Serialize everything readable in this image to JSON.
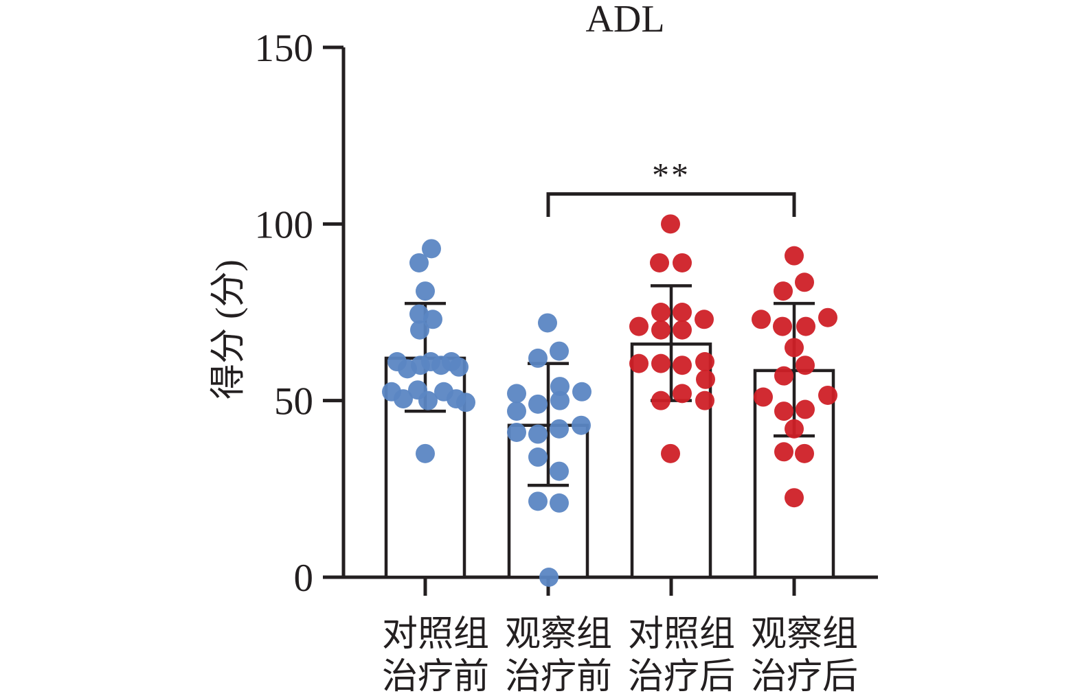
{
  "title": "ADL",
  "colors": {
    "pre_treatment_dots": "#5b86c3",
    "post_treatment_dots": "#cf2027",
    "axis": "#231f20",
    "bar_fill": "#ffffff"
  },
  "chart_data": {
    "type": "bar",
    "subtype": "bar-with-scatter-overlay-and-sd-error-bars",
    "title": "ADL",
    "ylabel": "得分 (分)",
    "xlabel": "",
    "ylim": [
      0,
      150
    ],
    "yticks": [
      0,
      50,
      100,
      150
    ],
    "grid": false,
    "legend": "none",
    "categories": [
      "对照组 治疗前",
      "观察组 治疗前",
      "对照组 治疗后",
      "观察组 治疗后"
    ],
    "groups": [
      {
        "label_lines": [
          "对照组",
          "治疗前"
        ],
        "dot_color": "#5b86c3",
        "bar_mean": 62,
        "error_low": 47,
        "error_high": 77.5,
        "points": [
          [
            9,
            93
          ],
          [
            -9,
            89
          ],
          [
            0,
            81
          ],
          [
            -9,
            74.5
          ],
          [
            11,
            73
          ],
          [
            -8,
            70
          ],
          [
            -41,
            61
          ],
          [
            -26,
            59
          ],
          [
            -7,
            60
          ],
          [
            8,
            61
          ],
          [
            23,
            60
          ],
          [
            38,
            61
          ],
          [
            49,
            59.5
          ],
          [
            -49,
            52.5
          ],
          [
            -32,
            50.5
          ],
          [
            -11,
            53
          ],
          [
            4,
            50
          ],
          [
            27,
            52.5
          ],
          [
            45,
            50.5
          ],
          [
            59,
            49.5
          ],
          [
            0,
            35
          ]
        ]
      },
      {
        "label_lines": [
          "观察组",
          "治疗前"
        ],
        "dot_color": "#5b86c3",
        "bar_mean": 43,
        "error_low": 26,
        "error_high": 60.5,
        "points": [
          [
            -1,
            72
          ],
          [
            16,
            64
          ],
          [
            -15,
            62
          ],
          [
            17,
            54
          ],
          [
            49,
            52.5
          ],
          [
            -46,
            52
          ],
          [
            17,
            50
          ],
          [
            -15,
            49
          ],
          [
            -46,
            47
          ],
          [
            48,
            43
          ],
          [
            16,
            42
          ],
          [
            -46,
            41
          ],
          [
            -15,
            40.5
          ],
          [
            -15,
            34
          ],
          [
            16,
            30
          ],
          [
            -15,
            21.5
          ],
          [
            16,
            21
          ],
          [
            1,
            0
          ]
        ]
      },
      {
        "label_lines": [
          "对照组",
          "治疗后"
        ],
        "dot_color": "#cf2027",
        "bar_mean": 66,
        "error_low": 50,
        "error_high": 82.5,
        "points": [
          [
            -1,
            100
          ],
          [
            -17,
            89
          ],
          [
            16,
            89
          ],
          [
            -15,
            75
          ],
          [
            16,
            75
          ],
          [
            48,
            73
          ],
          [
            -47,
            71
          ],
          [
            -15,
            70
          ],
          [
            16,
            70
          ],
          [
            49,
            61
          ],
          [
            -47,
            60.5
          ],
          [
            -15,
            60.5
          ],
          [
            16,
            60
          ],
          [
            50,
            56
          ],
          [
            16,
            52
          ],
          [
            -15,
            50
          ],
          [
            49,
            50
          ],
          [
            -1,
            35
          ]
        ]
      },
      {
        "label_lines": [
          "观察组",
          "治疗后"
        ],
        "dot_color": "#cf2027",
        "bar_mean": 58.5,
        "error_low": 40,
        "error_high": 77.5,
        "points": [
          [
            0,
            91
          ],
          [
            15,
            83.5
          ],
          [
            -16,
            81
          ],
          [
            -48,
            73
          ],
          [
            49,
            73.5
          ],
          [
            -17,
            71
          ],
          [
            17,
            71
          ],
          [
            0,
            65
          ],
          [
            16,
            60
          ],
          [
            -15,
            57
          ],
          [
            -45,
            51
          ],
          [
            49,
            51.5
          ],
          [
            16,
            47.5
          ],
          [
            -15,
            47
          ],
          [
            0,
            42
          ],
          [
            -15,
            35.5
          ],
          [
            15,
            35
          ],
          [
            0,
            22.5
          ]
        ]
      }
    ],
    "significance": {
      "label": "**",
      "from_group_index": 1,
      "to_group_index": 3,
      "y_value": 108.5,
      "tick_low": 102
    }
  }
}
